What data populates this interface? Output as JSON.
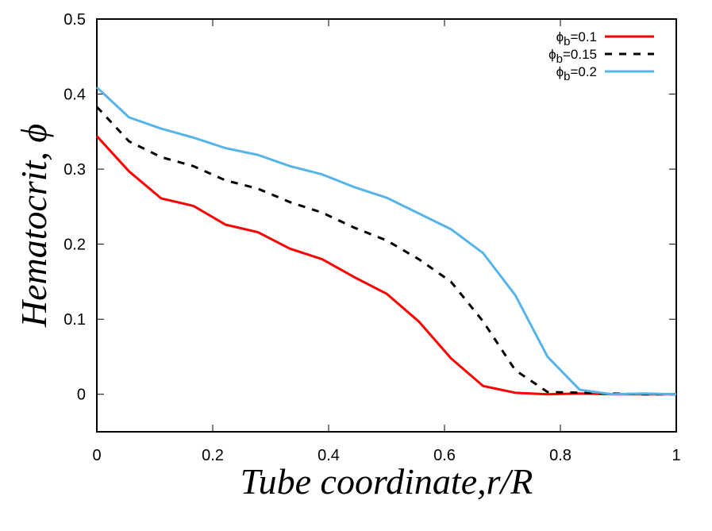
{
  "chart_data": {
    "type": "line",
    "title": "",
    "xlabel": "Tube coordinate,r/R",
    "ylabel": "Hematocrit, ϕ",
    "xlim": [
      0,
      1
    ],
    "ylim": [
      -0.05,
      0.5
    ],
    "xticks": [
      0,
      0.2,
      0.4,
      0.6,
      0.8,
      1
    ],
    "xtick_labels": [
      "0",
      "0.2",
      "0.4",
      "0.6",
      "0.8",
      "1"
    ],
    "yticks": [
      0,
      0.1,
      0.2,
      0.3,
      0.4,
      0.5
    ],
    "ytick_labels": [
      "0",
      "0.1",
      "0.2",
      "0.3",
      "0.4",
      "0.5"
    ],
    "grid": false,
    "legend_position": "top-right",
    "x": [
      0,
      0.0556,
      0.1111,
      0.1667,
      0.2222,
      0.2778,
      0.3333,
      0.3889,
      0.4444,
      0.5,
      0.5556,
      0.6111,
      0.6667,
      0.7222,
      0.7778,
      0.8333,
      0.8889,
      0.9444,
      1.0
    ],
    "series": [
      {
        "name": "ϕb=0.1",
        "symbol": "ϕ",
        "sub": "b",
        "suffix": "=0.1",
        "color": "#ff0000",
        "dash": "solid",
        "values": [
          0.344,
          0.297,
          0.261,
          0.251,
          0.226,
          0.216,
          0.194,
          0.18,
          0.156,
          0.134,
          0.097,
          0.048,
          0.011,
          0.002,
          0.0,
          0.001,
          0.0,
          0.0,
          0.0
        ]
      },
      {
        "name": "ϕb=0.15",
        "symbol": "ϕ",
        "sub": "b",
        "suffix": "=0.15",
        "color": "#000000",
        "dash": "dashed",
        "values": [
          0.383,
          0.337,
          0.316,
          0.304,
          0.285,
          0.274,
          0.256,
          0.242,
          0.222,
          0.205,
          0.18,
          0.15,
          0.097,
          0.032,
          0.003,
          0.002,
          0.001,
          0.0,
          0.0
        ]
      },
      {
        "name": "ϕb=0.2",
        "symbol": "ϕ",
        "sub": "b",
        "suffix": "=0.2",
        "color": "#56b4e9",
        "dash": "solid",
        "values": [
          0.409,
          0.369,
          0.354,
          0.342,
          0.328,
          0.319,
          0.304,
          0.293,
          0.276,
          0.262,
          0.241,
          0.22,
          0.188,
          0.132,
          0.05,
          0.006,
          0.0,
          0.001,
          0.0
        ]
      }
    ]
  }
}
